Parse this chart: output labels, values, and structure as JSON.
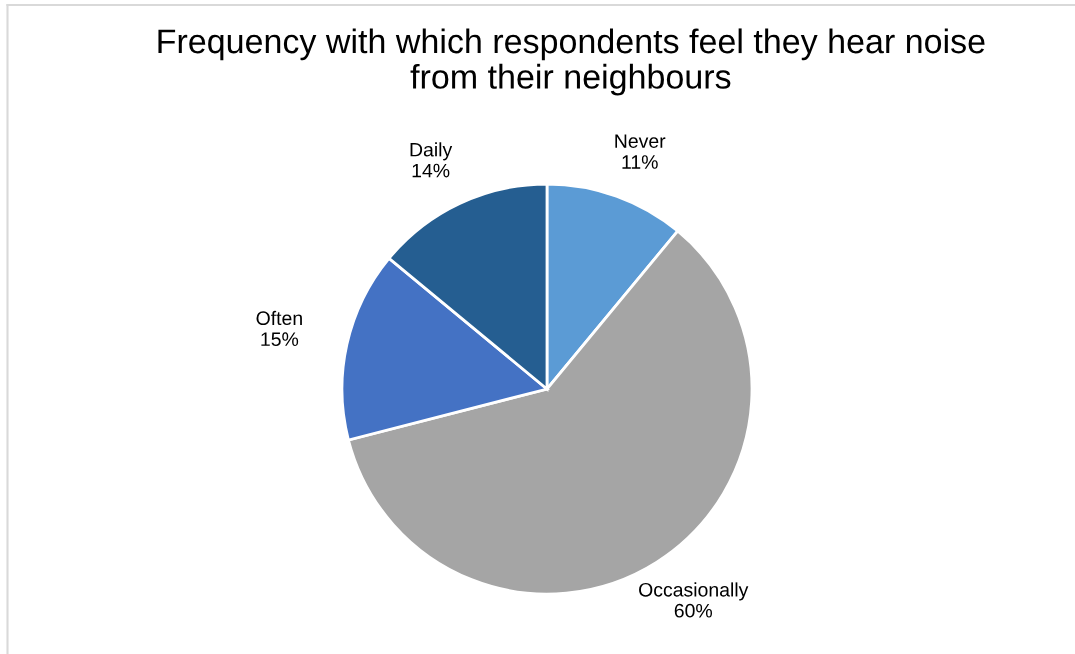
{
  "chart_data": {
    "type": "pie",
    "title": "Frequency with which respondents feel they hear noise\nfrom their neighbours",
    "categories": [
      "Never",
      "Occasionally",
      "Often",
      "Daily"
    ],
    "values": [
      11,
      60,
      15,
      14
    ],
    "colors": [
      "#5b9bd5",
      "#a5a5a5",
      "#4472c4",
      "#255e91"
    ],
    "value_labels": [
      "11%",
      "60%",
      "15%",
      "14%"
    ]
  }
}
